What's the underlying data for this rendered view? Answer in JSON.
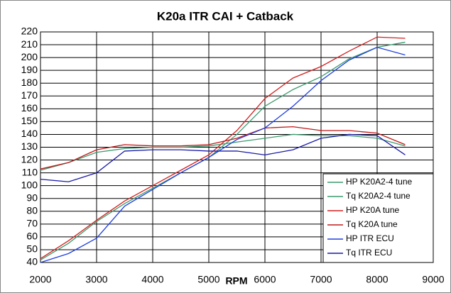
{
  "chart_data": {
    "type": "line",
    "title": "K20a ITR CAI + Catback",
    "x_label": "RPM",
    "x": [
      2000,
      2500,
      3000,
      3500,
      4000,
      4500,
      5000,
      5500,
      6000,
      6500,
      7000,
      7500,
      8000,
      8500
    ],
    "series": [
      {
        "name": "HP K20A2-4 tune",
        "color": "#3c9a6e",
        "values": [
          42,
          55,
          72,
          86,
          98,
          110,
          122,
          140,
          162,
          175,
          185,
          199,
          208,
          212
        ]
      },
      {
        "name": "Tq K20A2-4 tune",
        "color": "#3c9a6e",
        "values": [
          112,
          118,
          126,
          129,
          130,
          130,
          131,
          134,
          137,
          140,
          139,
          139,
          137,
          131
        ]
      },
      {
        "name": "HP K20A tune",
        "color": "#d42020",
        "values": [
          43,
          57,
          73,
          88,
          100,
          112,
          124,
          143,
          168,
          184,
          193,
          205,
          216,
          215
        ]
      },
      {
        "name": "Tq K20A tune",
        "color": "#c01818",
        "values": [
          113,
          118,
          128,
          132,
          131,
          131,
          132,
          137,
          145,
          146,
          143,
          143,
          141,
          132
        ]
      },
      {
        "name": "HP ITR ECU",
        "color": "#1f3fe0",
        "values": [
          40,
          47,
          59,
          84,
          97,
          110,
          122,
          136,
          145,
          162,
          182,
          198,
          208,
          202
        ]
      },
      {
        "name": "Tq ITR ECU",
        "color": "#1a1aa8",
        "values": [
          105,
          103,
          110,
          127,
          128,
          128,
          127,
          127,
          124,
          128,
          137,
          140,
          139,
          124
        ]
      }
    ],
    "xlim": [
      2000,
      9000
    ],
    "xticks": [
      2000,
      3000,
      4000,
      5000,
      6000,
      7000,
      8000,
      9000
    ],
    "ylim": [
      40,
      220
    ],
    "yticks": [
      40,
      50,
      60,
      70,
      80,
      90,
      100,
      110,
      120,
      130,
      140,
      150,
      160,
      170,
      180,
      190,
      200,
      210,
      220
    ],
    "grid": true,
    "legend": "lower right"
  }
}
